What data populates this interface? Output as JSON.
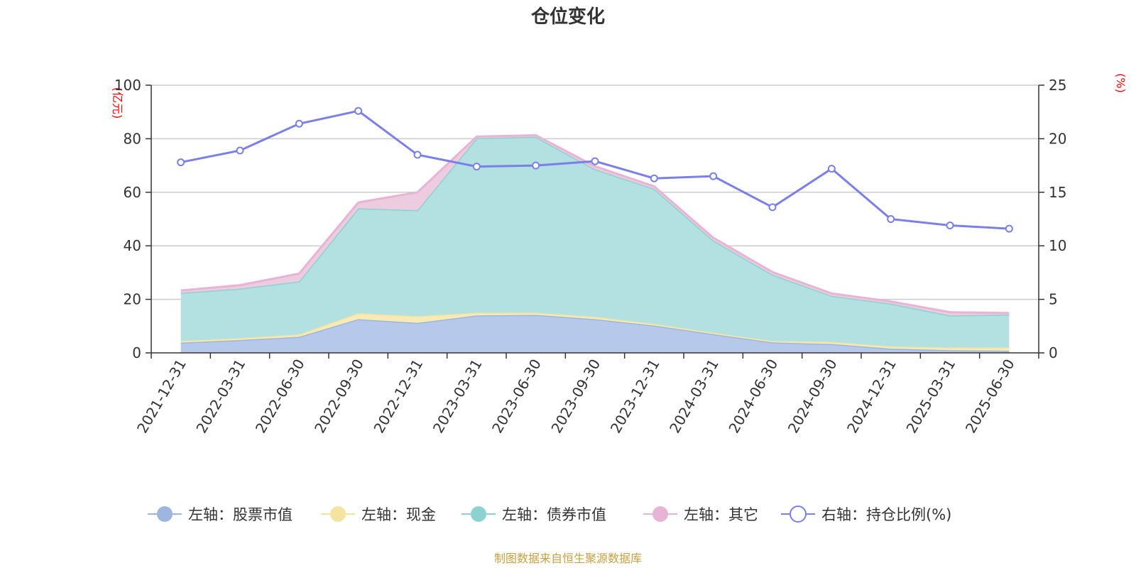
{
  "chart_data": {
    "type": "area",
    "title": "仓位变化",
    "left_axis_unit": "(亿元)",
    "right_axis_unit": "(%)",
    "left_ylim": [
      0,
      100
    ],
    "left_ticks": [
      0,
      20,
      40,
      60,
      80,
      100
    ],
    "right_ylim": [
      0,
      25
    ],
    "right_ticks": [
      0,
      5,
      10,
      15,
      20,
      25
    ],
    "grid": true,
    "legend_position": "bottom",
    "categories": [
      "2021-12-31",
      "2022-03-31",
      "2022-06-30",
      "2022-09-30",
      "2022-12-31",
      "2023-03-31",
      "2023-06-30",
      "2023-09-30",
      "2023-12-31",
      "2024-03-31",
      "2024-06-30",
      "2024-09-30",
      "2024-12-31",
      "2025-03-31",
      "2025-06-30"
    ],
    "stacked_series": [
      {
        "name": "左轴：股票市值",
        "color": "#9db6e0",
        "fill": "#b6c9ea",
        "values": [
          3.8,
          4.8,
          6.0,
          12.6,
          11.2,
          14.0,
          14.2,
          12.6,
          10.2,
          7.0,
          3.9,
          3.3,
          1.6,
          1.0,
          0.8
        ]
      },
      {
        "name": "左轴：现金",
        "color": "#f5e4a0",
        "fill": "#f8eab4",
        "values": [
          0.6,
          0.7,
          0.9,
          2.2,
          2.5,
          1.0,
          0.8,
          0.9,
          0.6,
          0.5,
          0.5,
          0.8,
          0.8,
          1.0,
          1.2
        ]
      },
      {
        "name": "左轴：债券市值",
        "color": "#8ed1d1",
        "fill": "#b3e0e0",
        "values": [
          18.0,
          18.5,
          19.8,
          39.2,
          39.6,
          65.2,
          65.7,
          55.1,
          50.5,
          34.5,
          24.8,
          17.2,
          16.0,
          12.0,
          12.3
        ]
      },
      {
        "name": "左轴：其它",
        "color": "#e8b4d6",
        "fill": "#eeccdf",
        "values": [
          0.9,
          1.3,
          2.9,
          2.2,
          6.7,
          0.6,
          0.6,
          1.1,
          0.9,
          1.0,
          1.0,
          0.9,
          0.8,
          1.2,
          0.6
        ]
      }
    ],
    "line_series": {
      "name": "右轴：持仓比例(%)",
      "color": "#7b7fea",
      "values": [
        17.8,
        18.9,
        21.4,
        22.6,
        18.5,
        17.4,
        17.5,
        17.9,
        16.3,
        16.5,
        13.6,
        17.2,
        12.5,
        11.9,
        11.6
      ]
    },
    "source": "制图数据来自恒生聚源数据库"
  }
}
